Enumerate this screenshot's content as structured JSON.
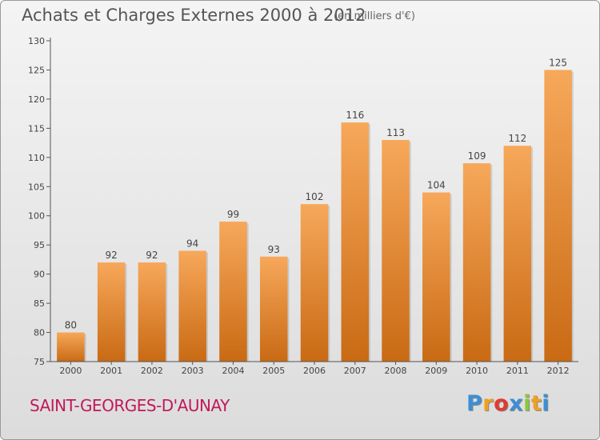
{
  "header": {
    "title": "Achats et Charges Externes 2000 à 2012",
    "unit": "(en milliers d'€)"
  },
  "footer": {
    "commune": "SAINT-GEORGES-D'AUNAY",
    "logo_letters": [
      "P",
      "r",
      "o",
      "x",
      "i",
      "t",
      "i"
    ],
    "logo_colors": [
      "#3b8fd6",
      "#f0a020",
      "#e03c31",
      "#3b8fd6",
      "#8cc63f",
      "#f0a020",
      "#3b8fd6"
    ]
  },
  "colors": {
    "bar_light": "#f7a85a",
    "bar_dark": "#c96a14",
    "axis": "#555555"
  },
  "chart_data": {
    "type": "bar",
    "title": "Achats et Charges Externes 2000 à 2012",
    "subtitle": "(en milliers d'€)",
    "categories": [
      "2000",
      "2001",
      "2002",
      "2003",
      "2004",
      "2005",
      "2006",
      "2007",
      "2008",
      "2009",
      "2010",
      "2011",
      "2012"
    ],
    "values": [
      80,
      92,
      92,
      94,
      99,
      93,
      102,
      116,
      113,
      104,
      109,
      112,
      125
    ],
    "ylim": [
      75,
      130
    ],
    "yticks": [
      75,
      80,
      85,
      90,
      95,
      100,
      105,
      110,
      115,
      120,
      125,
      130
    ],
    "grid": false,
    "data_labels": true
  }
}
